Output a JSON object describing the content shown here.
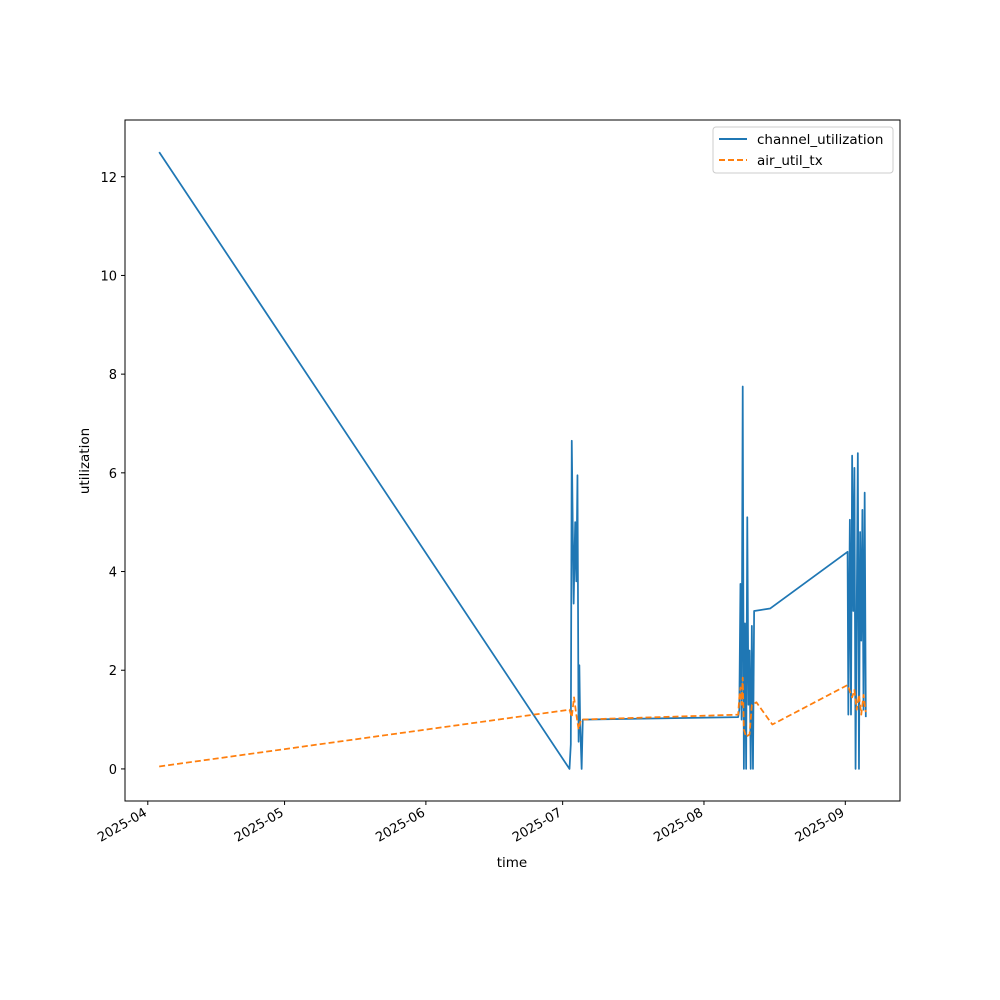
{
  "chart_data": {
    "type": "line",
    "xlabel": "time",
    "ylabel": "utilization",
    "x_type": "date",
    "xlim": [
      "2025-03-27",
      "2025-09-13"
    ],
    "ylim": [
      -0.65,
      13.15
    ],
    "x_ticks": [
      "2025-04-01",
      "2025-05-01",
      "2025-06-01",
      "2025-07-01",
      "2025-08-01",
      "2025-09-01"
    ],
    "x_tick_labels": [
      "2025-04",
      "2025-05",
      "2025-06",
      "2025-07",
      "2025-08",
      "2025-09"
    ],
    "y_ticks": [
      0,
      2,
      4,
      6,
      8,
      10,
      12
    ],
    "y_tick_labels": [
      "0",
      "2",
      "4",
      "6",
      "8",
      "10",
      "12"
    ],
    "grid": false,
    "legend_position": "top-right",
    "series": [
      {
        "name": "channel_utilization",
        "color": "#1f77b4",
        "dash": "solid",
        "points": [
          [
            "2025-04-03T12:00",
            12.5
          ],
          [
            "2025-07-02T12:00",
            0.0
          ],
          [
            "2025-07-02T19:00",
            0.5
          ],
          [
            "2025-07-03T00:00",
            6.65
          ],
          [
            "2025-07-03T10:00",
            3.35
          ],
          [
            "2025-07-03T18:00",
            5.0
          ],
          [
            "2025-07-04T00:00",
            3.8
          ],
          [
            "2025-07-04T06:00",
            5.95
          ],
          [
            "2025-07-04T12:00",
            0.55
          ],
          [
            "2025-07-04T16:00",
            2.1
          ],
          [
            "2025-07-04T20:00",
            0.95
          ],
          [
            "2025-07-05T04:00",
            0.0
          ],
          [
            "2025-07-05T10:00",
            1.0
          ],
          [
            "2025-08-08T12:00",
            1.05
          ],
          [
            "2025-08-08T18:00",
            1.2
          ],
          [
            "2025-08-09T00:00",
            3.75
          ],
          [
            "2025-08-09T06:00",
            1.0
          ],
          [
            "2025-08-09T12:00",
            7.75
          ],
          [
            "2025-08-09T18:00",
            0.0
          ],
          [
            "2025-08-10T00:00",
            2.95
          ],
          [
            "2025-08-10T06:00",
            0.0
          ],
          [
            "2025-08-10T12:00",
            5.1
          ],
          [
            "2025-08-10T18:00",
            1.3
          ],
          [
            "2025-08-11T00:00",
            2.4
          ],
          [
            "2025-08-11T06:00",
            0.0
          ],
          [
            "2025-08-11T12:00",
            2.9
          ],
          [
            "2025-08-11T18:00",
            0.0
          ],
          [
            "2025-08-12T00:00",
            3.2
          ],
          [
            "2025-08-15T12:00",
            3.25
          ],
          [
            "2025-09-01T12:00",
            4.4
          ],
          [
            "2025-09-01T16:00",
            1.1
          ],
          [
            "2025-09-02T00:00",
            5.05
          ],
          [
            "2025-09-02T06:00",
            1.1
          ],
          [
            "2025-09-02T12:00",
            6.35
          ],
          [
            "2025-09-02T18:00",
            3.2
          ],
          [
            "2025-09-03T00:00",
            6.1
          ],
          [
            "2025-09-03T06:00",
            0.0
          ],
          [
            "2025-09-03T12:00",
            3.1
          ],
          [
            "2025-09-03T18:00",
            6.4
          ],
          [
            "2025-09-04T00:00",
            0.0
          ],
          [
            "2025-09-04T06:00",
            4.8
          ],
          [
            "2025-09-04T12:00",
            2.6
          ],
          [
            "2025-09-04T18:00",
            5.25
          ],
          [
            "2025-09-05T00:00",
            1.2
          ],
          [
            "2025-09-05T06:00",
            5.6
          ],
          [
            "2025-09-05T12:00",
            1.05
          ]
        ]
      },
      {
        "name": "air_util_tx",
        "color": "#ff7f0e",
        "dash": "dashed",
        "points": [
          [
            "2025-04-03T12:00",
            0.05
          ],
          [
            "2025-07-02T12:00",
            1.2
          ],
          [
            "2025-07-03T00:00",
            1.05
          ],
          [
            "2025-07-03T12:00",
            1.45
          ],
          [
            "2025-07-04T00:00",
            1.1
          ],
          [
            "2025-07-04T12:00",
            0.8
          ],
          [
            "2025-07-05T00:00",
            1.0
          ],
          [
            "2025-08-08T12:00",
            1.1
          ],
          [
            "2025-08-08T18:00",
            1.45
          ],
          [
            "2025-08-09T00:00",
            1.65
          ],
          [
            "2025-08-09T06:00",
            1.3
          ],
          [
            "2025-08-09T12:00",
            1.85
          ],
          [
            "2025-08-09T18:00",
            0.8
          ],
          [
            "2025-08-10T06:00",
            0.65
          ],
          [
            "2025-08-11T00:00",
            0.7
          ],
          [
            "2025-08-11T12:00",
            1.3
          ],
          [
            "2025-08-12T12:00",
            1.35
          ],
          [
            "2025-08-16T00:00",
            0.9
          ],
          [
            "2025-09-01T12:00",
            1.7
          ],
          [
            "2025-09-02T12:00",
            1.45
          ],
          [
            "2025-09-03T00:00",
            1.6
          ],
          [
            "2025-09-03T12:00",
            1.2
          ],
          [
            "2025-09-04T00:00",
            1.5
          ],
          [
            "2025-09-04T12:00",
            1.1
          ],
          [
            "2025-09-05T00:00",
            1.5
          ],
          [
            "2025-09-05T12:00",
            1.15
          ]
        ]
      }
    ]
  }
}
